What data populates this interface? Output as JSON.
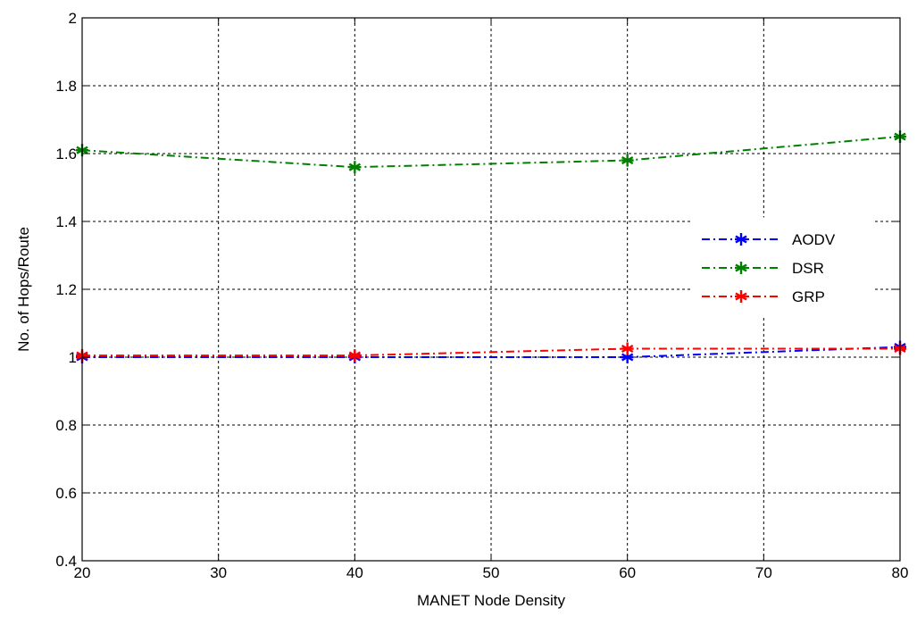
{
  "chart_data": {
    "type": "line",
    "title": "",
    "xlabel": "MANET Node Density",
    "ylabel": "No. of Hops/Route",
    "xlim": [
      20,
      80
    ],
    "ylim": [
      0.4,
      2
    ],
    "xticks": [
      20,
      30,
      40,
      50,
      60,
      70,
      80
    ],
    "yticks": [
      0.4,
      0.6,
      0.8,
      1,
      1.2,
      1.4,
      1.6,
      1.8,
      2
    ],
    "ytick_labels": [
      "0.4",
      "0.6",
      "0.8",
      "1",
      "1.2",
      "1.4",
      "1.6",
      "1.8",
      "2"
    ],
    "grid": true,
    "legend_position": "right",
    "x": [
      20,
      40,
      60,
      80
    ],
    "series": [
      {
        "name": "AODV",
        "values": [
          1.0,
          1.0,
          1.0,
          1.03
        ],
        "color": "#0000ff",
        "marker": "asterisk",
        "line_style": "dash-dot"
      },
      {
        "name": "DSR",
        "values": [
          1.61,
          1.56,
          1.58,
          1.65
        ],
        "color": "#008000",
        "marker": "asterisk",
        "line_style": "dash-dot"
      },
      {
        "name": "GRP",
        "values": [
          1.005,
          1.005,
          1.025,
          1.025
        ],
        "color": "#ff0000",
        "marker": "asterisk",
        "line_style": "dash-dot"
      }
    ]
  }
}
